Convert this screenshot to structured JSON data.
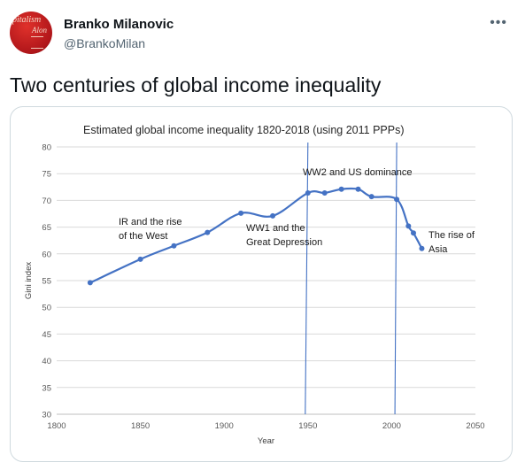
{
  "author": {
    "name": "Branko Milanovic",
    "handle": "@BrankoMilan",
    "avatar_text": [
      "apitalism",
      "Alon",
      "ko"
    ]
  },
  "tweet": {
    "text": "Two centuries of global income inequality"
  },
  "menu": {
    "icon": "more-icon"
  },
  "chart_data": {
    "type": "line",
    "title": "Estimated global  income inequality 1820-2018 (using 2011 PPPs)",
    "xlabel": "Year",
    "ylabel": "Gini index",
    "xlim": [
      1800,
      2050
    ],
    "ylim": [
      30,
      80
    ],
    "xticks": [
      1800,
      1850,
      1900,
      1950,
      2000,
      2050
    ],
    "yticks": [
      30,
      35,
      40,
      45,
      50,
      55,
      60,
      65,
      70,
      75,
      80
    ],
    "grid": true,
    "series": [
      {
        "color": "#4472c4",
        "points": [
          [
            1820,
            54.6
          ],
          [
            1850,
            59.0
          ],
          [
            1870,
            61.5
          ],
          [
            1890,
            64.0
          ],
          [
            1910,
            67.6
          ],
          [
            1929,
            67.1
          ],
          [
            1950,
            71.4
          ],
          [
            1960,
            71.4
          ],
          [
            1970,
            72.1
          ],
          [
            1980,
            72.1
          ],
          [
            1988,
            70.7
          ],
          [
            2003,
            70.2
          ],
          [
            2010,
            65.2
          ],
          [
            2013,
            63.9
          ],
          [
            2018,
            61.0
          ]
        ]
      }
    ],
    "vlines": [
      1950,
      2003
    ],
    "annotations": [
      {
        "lines": [
          "IR and the rise",
          "of the West"
        ]
      },
      {
        "lines": [
          "WW1 and the",
          "Great Depression"
        ]
      },
      {
        "lines": [
          "WW2 and US dominance"
        ]
      },
      {
        "lines": [
          "The rise of",
          "Asia"
        ]
      }
    ]
  }
}
